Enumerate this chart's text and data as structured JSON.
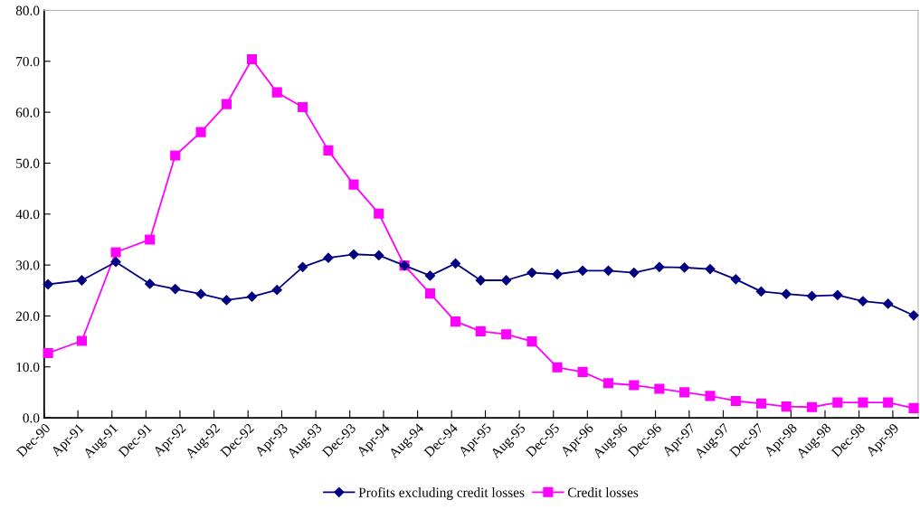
{
  "chart_data": {
    "type": "line",
    "x": [
      "1990-12-15",
      "1991-04-15",
      "1991-08-15",
      "1991-12-15",
      "1992-03-15",
      "1992-06-15",
      "1992-09-15",
      "1992-12-15",
      "1993-03-15",
      "1993-06-15",
      "1993-09-15",
      "1993-12-15",
      "1994-03-15",
      "1994-06-15",
      "1994-09-15",
      "1994-12-15",
      "1995-03-15",
      "1995-06-15",
      "1995-09-15",
      "1995-12-15",
      "1996-03-15",
      "1996-06-15",
      "1996-09-15",
      "1996-12-15",
      "1997-03-15",
      "1997-06-15",
      "1997-09-15",
      "1997-12-15",
      "1998-03-15",
      "1998-06-15",
      "1998-09-15",
      "1998-12-15",
      "1999-03-15",
      "1999-06-15"
    ],
    "series": [
      {
        "name": "Profits excluding credit losses",
        "color": "#000080",
        "marker": "diamond",
        "values": [
          26.2,
          27.0,
          30.6,
          26.3,
          25.3,
          24.3,
          23.1,
          23.8,
          25.1,
          29.6,
          31.4,
          32.1,
          31.9,
          29.9,
          27.9,
          30.3,
          27.0,
          27.0,
          28.5,
          28.2,
          28.9,
          28.9,
          28.5,
          29.6,
          29.5,
          29.2,
          27.2,
          24.8,
          24.3,
          23.9,
          24.1,
          22.9,
          22.4,
          20.1
        ]
      },
      {
        "name": "Credit losses",
        "color": "#ff00ff",
        "marker": "square",
        "values": [
          12.7,
          15.1,
          32.5,
          35.0,
          51.5,
          56.1,
          61.6,
          70.4,
          63.9,
          61.0,
          52.5,
          45.8,
          40.1,
          29.9,
          24.4,
          18.9,
          17.0,
          16.4,
          15.0,
          9.9,
          9.0,
          6.8,
          6.4,
          5.7,
          5.0,
          4.3,
          3.3,
          2.8,
          2.2,
          2.1,
          3.0,
          3.0,
          3.0,
          1.9
        ]
      }
    ],
    "xlim": [
      "1990-12-01",
      "1999-07-01"
    ],
    "xticks": [
      {
        "value": "1990-12-01",
        "label": "Dec-90"
      },
      {
        "value": "1991-04-01",
        "label": "Apr-91"
      },
      {
        "value": "1991-08-01",
        "label": "Aug-91"
      },
      {
        "value": "1991-12-01",
        "label": "Dec-91"
      },
      {
        "value": "1992-04-01",
        "label": "Apr-92"
      },
      {
        "value": "1992-08-01",
        "label": "Aug-92"
      },
      {
        "value": "1992-12-01",
        "label": "Dec-92"
      },
      {
        "value": "1993-04-01",
        "label": "Apr-93"
      },
      {
        "value": "1993-08-01",
        "label": "Aug-93"
      },
      {
        "value": "1993-12-01",
        "label": "Dec-93"
      },
      {
        "value": "1994-04-01",
        "label": "Apr-94"
      },
      {
        "value": "1994-08-01",
        "label": "Aug-94"
      },
      {
        "value": "1994-12-01",
        "label": "Dec-94"
      },
      {
        "value": "1995-04-01",
        "label": "Apr-95"
      },
      {
        "value": "1995-08-01",
        "label": "Aug-95"
      },
      {
        "value": "1995-12-01",
        "label": "Dec-95"
      },
      {
        "value": "1996-04-01",
        "label": "Apr-96"
      },
      {
        "value": "1996-08-01",
        "label": "Aug-96"
      },
      {
        "value": "1996-12-01",
        "label": "Dec-96"
      },
      {
        "value": "1997-04-01",
        "label": "Apr-97"
      },
      {
        "value": "1997-08-01",
        "label": "Aug-97"
      },
      {
        "value": "1997-12-01",
        "label": "Dec-97"
      },
      {
        "value": "1998-04-01",
        "label": "Apr-98"
      },
      {
        "value": "1998-08-01",
        "label": "Aug-98"
      },
      {
        "value": "1998-12-01",
        "label": "Dec-98"
      },
      {
        "value": "1999-04-01",
        "label": "Apr-99"
      }
    ],
    "ylim": [
      0,
      80
    ],
    "yticks": [
      {
        "value": 0,
        "label": "0.0"
      },
      {
        "value": 10,
        "label": "10.0"
      },
      {
        "value": 20,
        "label": "20.0"
      },
      {
        "value": 30,
        "label": "30.0"
      },
      {
        "value": 40,
        "label": "40.0"
      },
      {
        "value": 50,
        "label": "50.0"
      },
      {
        "value": 60,
        "label": "60.0"
      },
      {
        "value": 70,
        "label": "70.0"
      },
      {
        "value": 80,
        "label": "80.0"
      }
    ],
    "grid": false,
    "legend": "bottom",
    "line_style": "solid"
  }
}
